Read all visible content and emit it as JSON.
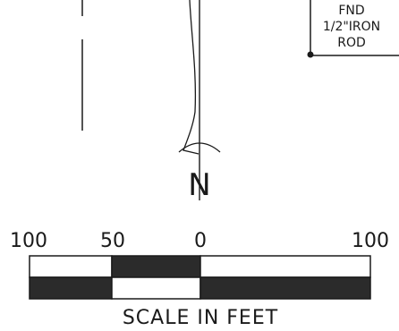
{
  "colors": {
    "ink": "#1a1a1a",
    "paper": "#ffffff",
    "fill_dark": "#2b2b2b"
  },
  "monument_label": {
    "line1": "FND",
    "line2": "1/2\"IRON",
    "line3": "ROD"
  },
  "north_arrow": {
    "letter": "N"
  },
  "scale_bar": {
    "tick_labels": [
      "100",
      "50",
      "0",
      "100"
    ],
    "caption": "SCALE IN FEET"
  }
}
